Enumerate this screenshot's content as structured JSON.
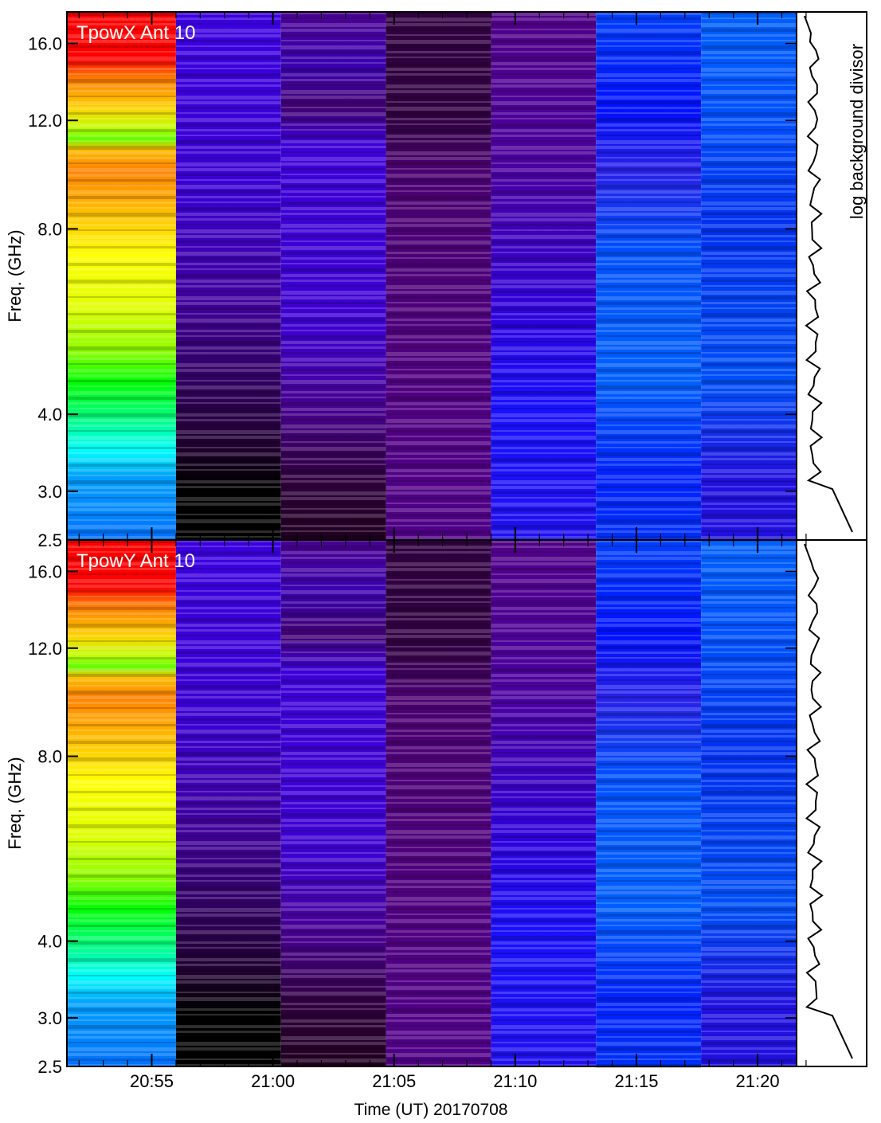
{
  "chart_data": [
    {
      "type": "heatmap",
      "title": "TpowX Ant 10",
      "ylabel": "Freq. (GHz)",
      "yscale": "log",
      "ylim": [
        2.5,
        18
      ],
      "yticks": [
        2.5,
        3.0,
        4.0,
        8.0,
        12.0,
        16.0
      ],
      "ytick_labels": [
        "2.5",
        "3.0",
        "4.0",
        "8.0",
        "12.0",
        "16.0"
      ],
      "time_range": [
        "20:51:30",
        "21:24:30"
      ],
      "scans": [
        {
          "start": "20:51:30",
          "end": "20:56:00",
          "palette": "rainbow"
        },
        {
          "start": "20:56:00",
          "end": "21:00:20",
          "palette": "violet-to-black"
        },
        {
          "start": "21:00:20",
          "end": "21:04:40",
          "palette": "violet-to-dark"
        },
        {
          "start": "21:04:40",
          "end": "21:09:00",
          "palette": "dark-purple"
        },
        {
          "start": "21:09:00",
          "end": "21:13:20",
          "palette": "purple-to-blue"
        },
        {
          "start": "21:13:20",
          "end": "21:17:40",
          "palette": "blue"
        },
        {
          "start": "21:17:40",
          "end": "21:22:00",
          "palette": "royal-blue"
        }
      ],
      "side_panel_label": "log background divisor"
    },
    {
      "type": "heatmap",
      "title": "TpowY Ant 10",
      "ylabel": "Freq. (GHz)",
      "yscale": "log",
      "ylim": [
        2.5,
        18
      ],
      "yticks": [
        2.5,
        3.0,
        4.0,
        8.0,
        12.0,
        16.0
      ],
      "ytick_labels": [
        "2.5",
        "3.0",
        "4.0",
        "8.0",
        "12.0",
        "16.0"
      ],
      "xlabel": "Time (UT) 20170708",
      "xtick_labels": [
        "20:55",
        "21:00",
        "21:05",
        "21:10",
        "21:15",
        "21:20"
      ],
      "time_range": [
        "20:51:30",
        "21:24:30"
      ],
      "scans": [
        {
          "start": "20:51:30",
          "end": "20:56:00",
          "palette": "rainbow"
        },
        {
          "start": "20:56:00",
          "end": "21:00:20",
          "palette": "violet-to-black"
        },
        {
          "start": "21:00:20",
          "end": "21:04:40",
          "palette": "violet-to-dark"
        },
        {
          "start": "21:04:40",
          "end": "21:09:00",
          "palette": "dark-purple"
        },
        {
          "start": "21:09:00",
          "end": "21:13:20",
          "palette": "purple-to-blue"
        },
        {
          "start": "21:13:20",
          "end": "21:17:40",
          "palette": "blue"
        },
        {
          "start": "21:17:40",
          "end": "21:22:00",
          "palette": "royal-blue"
        }
      ]
    }
  ],
  "colors": {
    "title_text": "#ffffff",
    "axis": "#000000",
    "rainbow_stops": [
      "#ff0000",
      "#ff8000",
      "#ffff00",
      "#80ff00",
      "#00ff00",
      "#00ffff",
      "#0080ff"
    ],
    "violet_black_stops": [
      "#3a00d8",
      "#300078",
      "#000000"
    ],
    "violet_dark_stops": [
      "#3d00d0",
      "#4a0090",
      "#200020"
    ],
    "dark_purple_stops": [
      "#3a0050",
      "#4a0078",
      "#500088"
    ],
    "purple_blue_stops": [
      "#500088",
      "#2a00e0",
      "#2010f8"
    ],
    "blue_stops": [
      "#0020ff",
      "#0060ff",
      "#0030f8"
    ],
    "royal_blue_stops": [
      "#0060ff",
      "#0040f0",
      "#2010e0"
    ]
  }
}
